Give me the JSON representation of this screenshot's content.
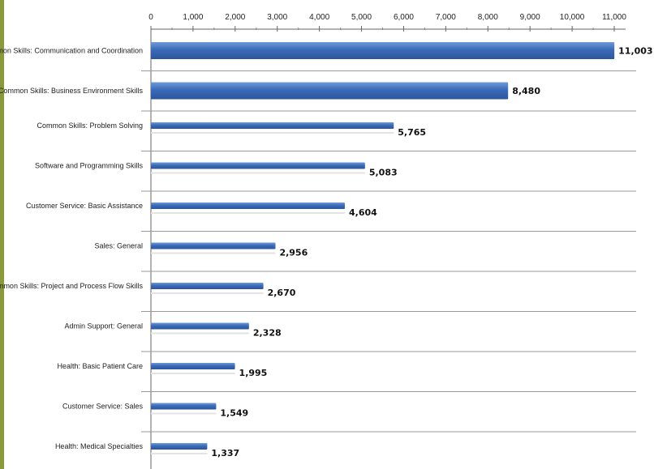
{
  "chart_data": {
    "type": "bar",
    "orientation": "horizontal",
    "categories": [
      "Common Skills: Communication and Coordination",
      "Common Skills: Business Environment Skills",
      "Common Skills: Problem Solving",
      "Software and Programming Skills",
      "Customer Service: Basic Assistance",
      "Sales: General",
      "Common Skills: Project and Process Flow Skills",
      "Admin Support: General",
      "Health: Basic Patient Care",
      "Customer Service: Sales",
      "Health: Medical Specialties"
    ],
    "values": [
      11003,
      8480,
      5765,
      5083,
      4604,
      2956,
      2670,
      2328,
      1995,
      1549,
      1337
    ],
    "value_labels": [
      "11,003",
      "8,480",
      "5,765",
      "5,083",
      "4,604",
      "2,956",
      "2,670",
      "2,328",
      "1,995",
      "1,549",
      "1,337"
    ],
    "x_ticks": [
      0,
      1000,
      2000,
      3000,
      4000,
      5000,
      6000,
      7000,
      8000,
      9000,
      10000,
      11000
    ],
    "x_tick_labels": [
      "0",
      "1,000",
      "2,000",
      "3,000",
      "4,000",
      "5,000",
      "6,000",
      "7,000",
      "8,000",
      "9,000",
      "10,000",
      "11,000"
    ],
    "xlim": [
      0,
      11000
    ],
    "x_axis_position": "top",
    "title": "",
    "xlabel": "",
    "ylabel": "",
    "grid": "horizontal separators between categories",
    "legend": "none",
    "bar_color": "#3a6bb8",
    "bar_color_light": "#6f9ad8",
    "bar_shadow_color": "#e3e3e3",
    "separator_color": "#9a9a9a",
    "stripe_color": "#8a9a3a"
  }
}
